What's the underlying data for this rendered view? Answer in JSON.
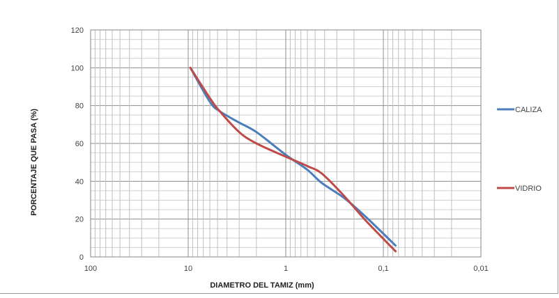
{
  "chart_data": {
    "type": "line",
    "title": "",
    "xlabel": "DIAMETRO DEL TAMIZ (mm)",
    "ylabel": "PORCENTAJE QUE PASA (%)",
    "x_scale": "log",
    "x_reversed": true,
    "xlim": [
      100,
      0.01
    ],
    "ylim": [
      0,
      120
    ],
    "x_tick_labels": [
      "100",
      "10",
      "1",
      "0,1",
      "0,01"
    ],
    "x_tick_values": [
      100,
      10,
      1,
      0.1,
      0.01
    ],
    "y_tick_labels": [
      "0",
      "20",
      "40",
      "60",
      "80",
      "100",
      "120"
    ],
    "y_tick_values": [
      0,
      20,
      40,
      60,
      80,
      100,
      120
    ],
    "grid": true,
    "legend_position": "right",
    "series": [
      {
        "name": "CALIZA",
        "color": "#4a7ebb",
        "x": [
          9.5,
          6,
          4.75,
          3,
          2,
          1,
          0.6,
          0.425,
          0.25,
          0.15,
          0.075
        ],
        "y": [
          100,
          82,
          77,
          71,
          66,
          54,
          46,
          39,
          31,
          21,
          6
        ]
      },
      {
        "name": "VIDRIO",
        "color": "#be4b48",
        "x": [
          9.5,
          6,
          4.75,
          3,
          2,
          1,
          0.6,
          0.425,
          0.25,
          0.15,
          0.075
        ],
        "y": [
          100,
          84,
          77,
          66,
          60,
          53,
          48,
          44,
          32,
          19,
          3
        ]
      }
    ]
  }
}
